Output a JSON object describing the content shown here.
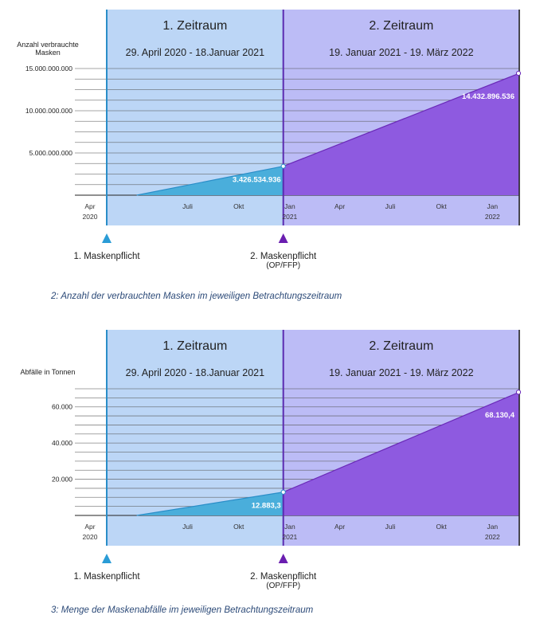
{
  "charts": [
    {
      "ylabel": "Anzahl verbrauchte\nMasken",
      "periods": [
        {
          "title": "1. Zeitraum",
          "range": "29. April 2020 - 18.Januar 2021"
        },
        {
          "title": "2. Zeitraum",
          "range": "19. Januar 2021 - 19. März 2022"
        }
      ],
      "events": [
        {
          "label": "1. Maskenpflicht",
          "sub": ""
        },
        {
          "label": "2. Maskenpflicht",
          "sub": "(OP/FFP)"
        }
      ],
      "caption": "2: Anzahl der verbrauchten Masken im jeweiligen Betrachtungszeitraum"
    },
    {
      "ylabel": "Abfälle in Tonnen",
      "periods": [
        {
          "title": "1. Zeitraum",
          "range": "29. April 2020 - 18.Januar 2021"
        },
        {
          "title": "2. Zeitraum",
          "range": "19. Januar 2021 - 19. März 2022"
        }
      ],
      "events": [
        {
          "label": "1. Maskenpflicht",
          "sub": ""
        },
        {
          "label": "2. Maskenpflicht",
          "sub": "(OP/FFP)"
        }
      ],
      "caption": "3: Menge der Maskenabfälle im jeweiligen Betrachtungszeitraum"
    }
  ],
  "chart_data": [
    {
      "type": "area",
      "x": [
        "2020-04-29",
        "2021-01-18",
        "2022-03-19"
      ],
      "values": [
        0,
        3426534936,
        14432896536
      ],
      "value_labels": [
        "",
        "3.426.534.936",
        "14.432.896.536"
      ],
      "ylabel": "Anzahl verbrauchte Masken",
      "ylim": [
        0,
        15000000000
      ],
      "yticks": [
        5000000000,
        10000000000,
        15000000000
      ],
      "ytick_labels": [
        "5.000.000.000",
        "10.000.000.000",
        "15.000.000.000"
      ],
      "xtick_labels": [
        {
          "month": "Apr",
          "year": "2020"
        },
        {
          "month": "Juli",
          "year": ""
        },
        {
          "month": "Okt",
          "year": ""
        },
        {
          "month": "Jan",
          "year": "2021"
        },
        {
          "month": "Apr",
          "year": ""
        },
        {
          "month": "Juli",
          "year": ""
        },
        {
          "month": "Okt",
          "year": ""
        },
        {
          "month": "Jan",
          "year": "2022"
        }
      ],
      "grid": true,
      "colors": {
        "period1": "#4aaedb",
        "period2": "#8e5ae0",
        "bg1": "#bcd6f6",
        "bg2": "#bcbcf6",
        "line1": "#2a8ec8",
        "line2": "#6a2ab8"
      }
    },
    {
      "type": "area",
      "x": [
        "2020-04-29",
        "2021-01-18",
        "2022-03-19"
      ],
      "values": [
        0,
        12883.3,
        68130.4
      ],
      "value_labels": [
        "",
        "12.883,3",
        "68.130,4"
      ],
      "ylabel": "Abfälle in Tonnen",
      "ylim": [
        0,
        70000
      ],
      "yticks": [
        20000,
        40000,
        60000
      ],
      "ytick_labels": [
        "20.000",
        "40.000",
        "60.000"
      ],
      "xtick_labels": [
        {
          "month": "Apr",
          "year": "2020"
        },
        {
          "month": "Juli",
          "year": ""
        },
        {
          "month": "Okt",
          "year": ""
        },
        {
          "month": "Jan",
          "year": "2021"
        },
        {
          "month": "Apr",
          "year": ""
        },
        {
          "month": "Juli",
          "year": ""
        },
        {
          "month": "Okt",
          "year": ""
        },
        {
          "month": "Jan",
          "year": "2022"
        }
      ],
      "grid": true,
      "colors": {
        "period1": "#4aaedb",
        "period2": "#8e5ae0",
        "bg1": "#bcd6f6",
        "bg2": "#bcbcf6",
        "line1": "#2a8ec8",
        "line2": "#6a2ab8"
      }
    }
  ]
}
